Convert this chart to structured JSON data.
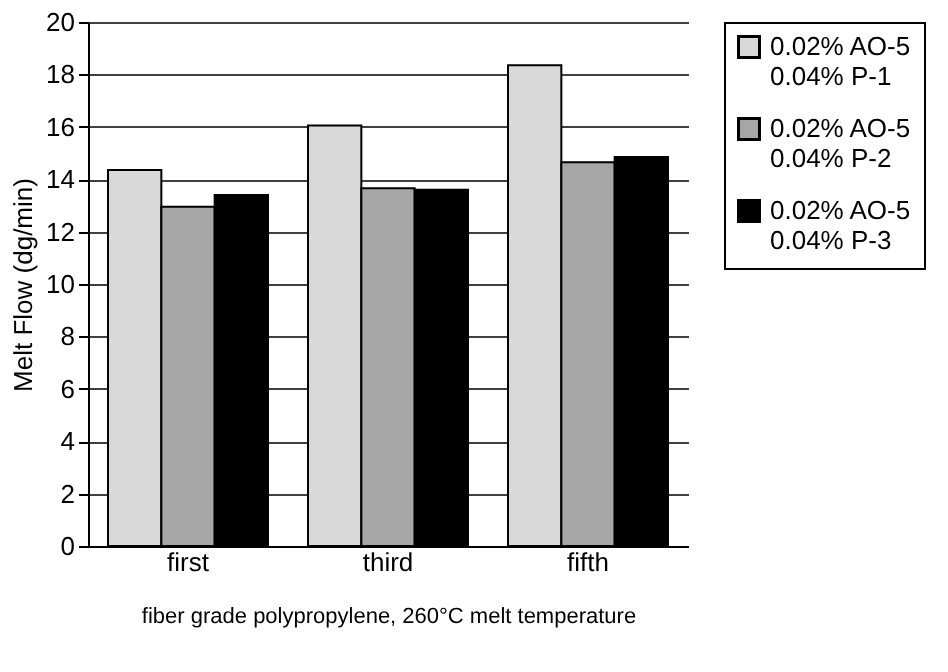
{
  "chart_data": {
    "type": "bar",
    "xlabel": "fiber grade polypropylene, 260°C melt temperature",
    "ylabel": "Melt Flow (dg/min)",
    "categories": [
      "first",
      "third",
      "fifth"
    ],
    "series": [
      {
        "name": "0.02% AO-5\n0.04% P-1",
        "color": "#d9d9d9",
        "values": [
          14.35,
          16.05,
          18.35
        ]
      },
      {
        "name": "0.02% AO-5\n0.04% P-2",
        "color": "#a6a6a6",
        "values": [
          12.95,
          13.65,
          14.65
        ]
      },
      {
        "name": "0.02% AO-5\n0.04% P-3",
        "color": "#000000",
        "values": [
          13.4,
          13.6,
          14.85
        ]
      }
    ],
    "ylim": [
      0,
      20
    ],
    "yticks": [
      0,
      2,
      4,
      6,
      8,
      10,
      12,
      14,
      16,
      18,
      20
    ],
    "grid": "y",
    "legend": "right"
  }
}
